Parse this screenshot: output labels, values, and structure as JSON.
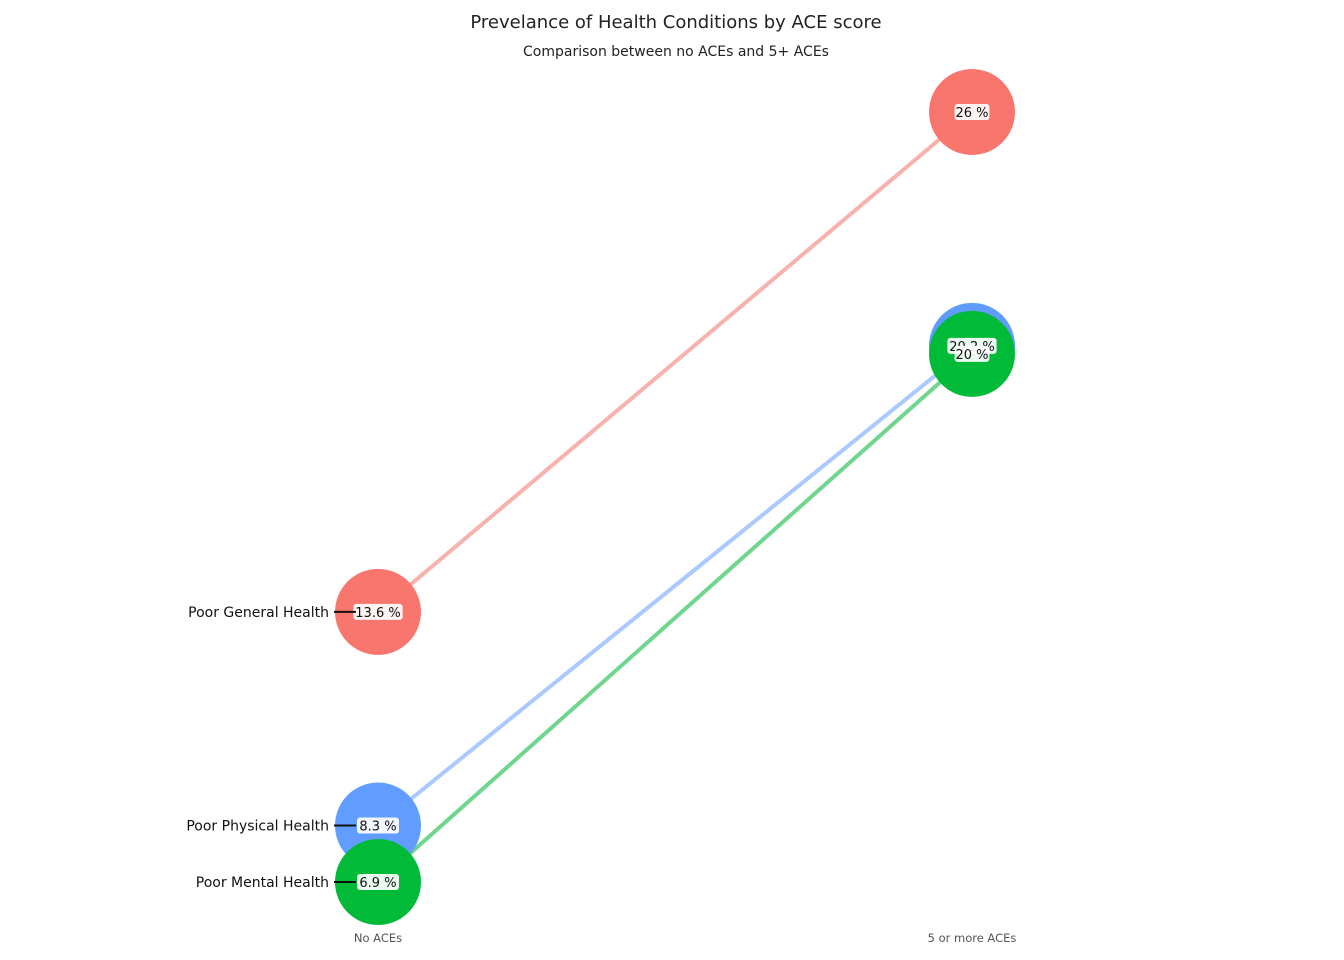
{
  "chart_data": {
    "type": "slope",
    "title": "Prevelance of Health Conditions by ACE score",
    "subtitle": "Comparison between no ACEs and 5+ ACEs",
    "x_categories": [
      "No ACEs",
      "5 or more ACEs"
    ],
    "series": [
      {
        "name": "Poor General Health",
        "color": "#f8766d",
        "line_color": "#f8b2ad",
        "values": [
          13.6,
          26
        ],
        "labels": [
          "13.6 %",
          "26 %"
        ]
      },
      {
        "name": "Poor Physical Health",
        "color": "#619cff",
        "line_color": "#a9c9ff",
        "values": [
          8.3,
          20.2
        ],
        "labels": [
          "8.3 %",
          "20.2 %"
        ]
      },
      {
        "name": "Poor Mental Health",
        "color": "#00ba38",
        "line_color": "#70d68e",
        "values": [
          6.9,
          20
        ],
        "labels": [
          "6.9 %",
          "20 %"
        ]
      }
    ],
    "ylim": [
      6.9,
      26
    ],
    "grid": false,
    "legend": "none"
  }
}
